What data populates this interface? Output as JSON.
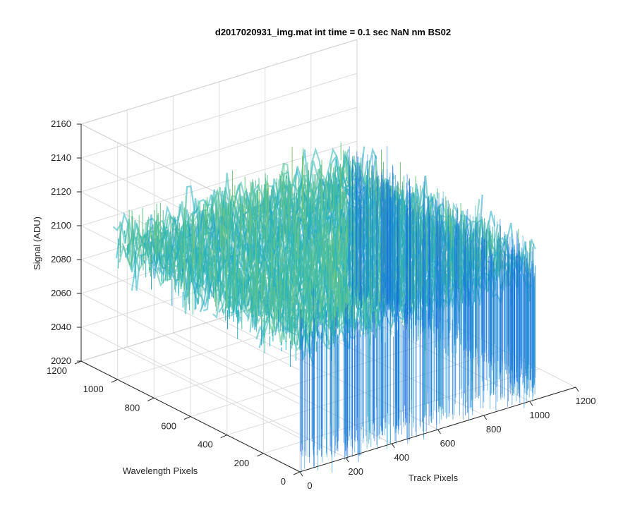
{
  "chart_data": {
    "type": "surface3d",
    "title": "d2017020931_img.mat int time = 0.1 sec  NaN nm BS02",
    "xlabel": "Track Pixels",
    "ylabel": "Wavelength Pixels",
    "zlabel": "Signal (ADU)",
    "xlim": [
      0,
      1200
    ],
    "ylim": [
      0,
      1200
    ],
    "zlim": [
      2020,
      2160
    ],
    "xticks": [
      "0",
      "200",
      "400",
      "600",
      "800",
      "1000",
      "1200"
    ],
    "yticks": [
      "0",
      "200",
      "400",
      "600",
      "800",
      "1000",
      "1200"
    ],
    "zticks": [
      "2020",
      "2040",
      "2060",
      "2080",
      "2100",
      "2120",
      "2140",
      "2160"
    ],
    "grid": true,
    "colormap": "parula",
    "data_extent": {
      "x": [
        0,
        1024
      ],
      "y": [
        0,
        1024
      ]
    },
    "signal_mean": 2100,
    "signal_range": [
      2030,
      2150
    ],
    "colors": {
      "low": "#0d64e0",
      "mid": "#1fb6c2",
      "high": "#e6c43a"
    }
  }
}
